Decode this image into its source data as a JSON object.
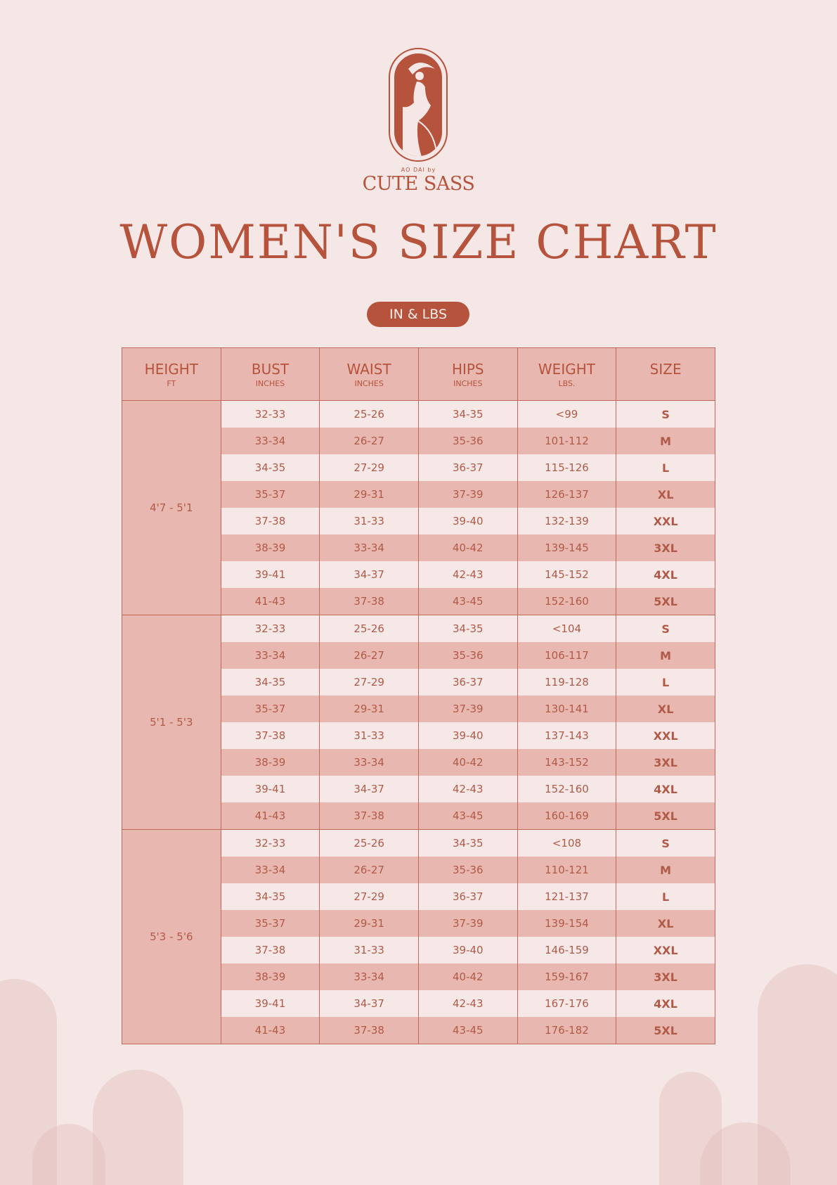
{
  "brand": {
    "tagline": "AO DAI by",
    "name": "CUTE SASS"
  },
  "title": "WOMEN'S SIZE CHART",
  "unit_badge": "IN & LBS",
  "colors": {
    "accent": "#b5533d",
    "background": "#f6e7e7",
    "row_dark": "#e8b7af",
    "row_light": "#f7e8e8"
  },
  "headers": [
    {
      "label": "HEIGHT",
      "sub": "FT"
    },
    {
      "label": "BUST",
      "sub": "INCHES"
    },
    {
      "label": "WAIST",
      "sub": "INCHES"
    },
    {
      "label": "HIPS",
      "sub": "INCHES"
    },
    {
      "label": "WEIGHT",
      "sub": "LBS."
    },
    {
      "label": "SIZE",
      "sub": ""
    }
  ],
  "groups": [
    {
      "height": "4'7 - 5'1",
      "rows": [
        [
          "32-33",
          "25-26",
          "34-35",
          "<99",
          "S"
        ],
        [
          "33-34",
          "26-27",
          "35-36",
          "101-112",
          "M"
        ],
        [
          "34-35",
          "27-29",
          "36-37",
          "115-126",
          "L"
        ],
        [
          "35-37",
          "29-31",
          "37-39",
          "126-137",
          "XL"
        ],
        [
          "37-38",
          "31-33",
          "39-40",
          "132-139",
          "XXL"
        ],
        [
          "38-39",
          "33-34",
          "40-42",
          "139-145",
          "3XL"
        ],
        [
          "39-41",
          "34-37",
          "42-43",
          "145-152",
          "4XL"
        ],
        [
          "41-43",
          "37-38",
          "43-45",
          "152-160",
          "5XL"
        ]
      ]
    },
    {
      "height": "5'1 - 5'3",
      "rows": [
        [
          "32-33",
          "25-26",
          "34-35",
          "<104",
          "S"
        ],
        [
          "33-34",
          "26-27",
          "35-36",
          "106-117",
          "M"
        ],
        [
          "34-35",
          "27-29",
          "36-37",
          "119-128",
          "L"
        ],
        [
          "35-37",
          "29-31",
          "37-39",
          "130-141",
          "XL"
        ],
        [
          "37-38",
          "31-33",
          "39-40",
          "137-143",
          "XXL"
        ],
        [
          "38-39",
          "33-34",
          "40-42",
          "143-152",
          "3XL"
        ],
        [
          "39-41",
          "34-37",
          "42-43",
          "152-160",
          "4XL"
        ],
        [
          "41-43",
          "37-38",
          "43-45",
          "160-169",
          "5XL"
        ]
      ]
    },
    {
      "height": "5'3 - 5'6",
      "rows": [
        [
          "32-33",
          "25-26",
          "34-35",
          "<108",
          "S"
        ],
        [
          "33-34",
          "26-27",
          "35-36",
          "110-121",
          "M"
        ],
        [
          "34-35",
          "27-29",
          "36-37",
          "121-137",
          "L"
        ],
        [
          "35-37",
          "29-31",
          "37-39",
          "139-154",
          "XL"
        ],
        [
          "37-38",
          "31-33",
          "39-40",
          "146-159",
          "XXL"
        ],
        [
          "38-39",
          "33-34",
          "40-42",
          "159-167",
          "3XL"
        ],
        [
          "39-41",
          "34-37",
          "42-43",
          "167-176",
          "4XL"
        ],
        [
          "41-43",
          "37-38",
          "43-45",
          "176-182",
          "5XL"
        ]
      ]
    }
  ]
}
